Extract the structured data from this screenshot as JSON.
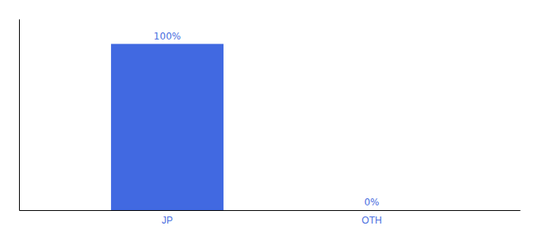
{
  "chart_data": {
    "type": "bar",
    "categories": [
      "JP",
      "OTH"
    ],
    "values": [
      100,
      0
    ],
    "value_labels": [
      "100%",
      "0%"
    ],
    "data_labels": true,
    "color": "#4169e1",
    "ylim": [
      0,
      115
    ],
    "tick_labels": "x"
  }
}
